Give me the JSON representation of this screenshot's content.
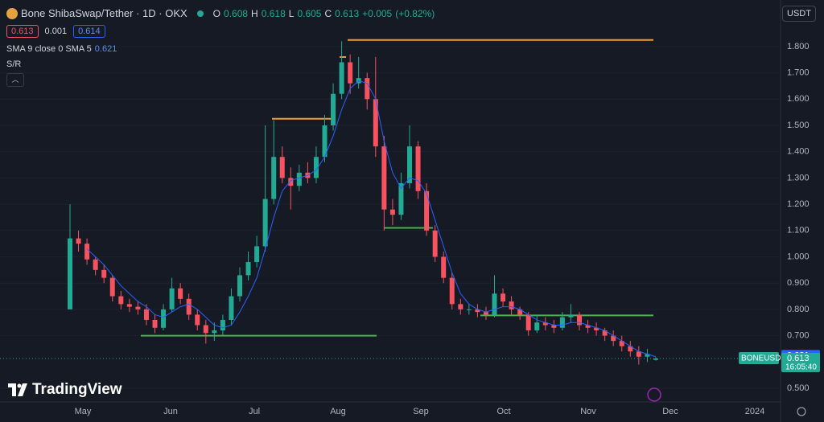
{
  "chart_data": {
    "type": "candlestick",
    "title": "Bone ShibaSwap/Tether · 1D · OKX",
    "legend": {
      "o": "O",
      "h": "H",
      "l": "L",
      "c": "C",
      "open": 0.608,
      "high": 0.618,
      "low": 0.605,
      "close": 0.613,
      "change": "+0.005",
      "change_pct": "(+0.82%)"
    },
    "quote": {
      "bid": 0.613,
      "spread": 0.001,
      "ask": 0.614
    },
    "indicator": {
      "label": "SMA 9 close 0 SMA 5",
      "value": 0.621,
      "color": "#2962ff"
    },
    "sr_label": "S/R",
    "currency": "USDT",
    "symbol": "BONEUSDT",
    "countdown": "16:05:40",
    "last": 0.613,
    "brand": "TradingView",
    "up_color": "#22ab94",
    "down_color": "#f7525f",
    "xticks": [
      "May",
      "Jun",
      "Jul",
      "Aug",
      "Sep",
      "Oct",
      "Nov",
      "Dec",
      "2024"
    ],
    "ylim": [
      0.448,
      1.977
    ],
    "yticks": [
      {
        "value": 1.8,
        "label": "1.800"
      },
      {
        "value": 1.7,
        "label": "1.700"
      },
      {
        "value": 1.6,
        "label": "1.600"
      },
      {
        "value": 1.5,
        "label": "1.500"
      },
      {
        "value": 1.4,
        "label": "1.400"
      },
      {
        "value": 1.3,
        "label": "1.300"
      },
      {
        "value": 1.2,
        "label": "1.200"
      },
      {
        "value": 1.1,
        "label": "1.100"
      },
      {
        "value": 1.0,
        "label": "1.000"
      },
      {
        "value": 0.9,
        "label": "0.900"
      },
      {
        "value": 0.8,
        "label": "0.800"
      },
      {
        "value": 0.7,
        "label": "0.700"
      },
      {
        "value": 0.5,
        "label": "0.500"
      }
    ],
    "grid": true,
    "open": [
      0.8,
      1.07,
      1.05,
      0.99,
      0.95,
      0.92,
      0.85,
      0.82,
      0.81,
      0.8,
      0.76,
      0.73,
      0.8,
      0.88,
      0.84,
      0.78,
      0.74,
      0.71,
      0.72,
      0.76,
      0.85,
      0.93,
      0.98,
      1.04,
      1.22,
      1.38,
      1.3,
      1.27,
      1.32,
      1.3,
      1.38,
      1.5,
      1.62,
      1.74,
      1.66,
      1.68,
      1.6,
      1.42,
      1.18,
      1.16,
      1.28,
      1.42,
      1.25,
      1.1,
      1.0,
      0.92,
      0.82,
      0.8,
      0.8,
      0.79,
      0.78,
      0.86,
      0.83,
      0.8,
      0.78,
      0.72,
      0.75,
      0.74,
      0.73,
      0.77,
      0.78,
      0.74,
      0.73,
      0.72,
      0.7,
      0.68,
      0.66,
      0.64,
      0.62,
      0.608
    ],
    "high": [
      1.2,
      1.1,
      1.07,
      1.0,
      0.97,
      0.93,
      0.87,
      0.84,
      0.83,
      0.82,
      0.78,
      0.82,
      0.92,
      0.9,
      0.86,
      0.8,
      0.76,
      0.75,
      0.78,
      0.88,
      0.96,
      1.02,
      1.08,
      1.5,
      1.52,
      1.42,
      1.34,
      1.35,
      1.36,
      1.42,
      1.54,
      1.66,
      1.82,
      1.77,
      1.76,
      1.7,
      1.76,
      1.46,
      1.22,
      1.32,
      1.5,
      1.44,
      1.28,
      1.12,
      1.02,
      0.94,
      0.84,
      0.82,
      0.82,
      0.81,
      0.93,
      0.88,
      0.85,
      0.81,
      0.79,
      0.78,
      0.77,
      0.76,
      0.79,
      0.82,
      0.79,
      0.76,
      0.75,
      0.73,
      0.72,
      0.7,
      0.68,
      0.66,
      0.65,
      0.618
    ],
    "low": [
      0.8,
      1.02,
      0.97,
      0.93,
      0.9,
      0.83,
      0.8,
      0.79,
      0.78,
      0.74,
      0.71,
      0.72,
      0.79,
      0.82,
      0.76,
      0.72,
      0.67,
      0.68,
      0.7,
      0.74,
      0.83,
      0.91,
      0.96,
      1.02,
      1.2,
      1.28,
      1.18,
      1.25,
      1.28,
      1.28,
      1.36,
      1.48,
      1.6,
      1.62,
      1.64,
      1.56,
      1.38,
      1.1,
      1.12,
      1.14,
      1.26,
      1.22,
      1.08,
      0.98,
      0.9,
      0.8,
      0.78,
      0.78,
      0.77,
      0.76,
      0.77,
      0.81,
      0.78,
      0.76,
      0.7,
      0.71,
      0.72,
      0.71,
      0.72,
      0.75,
      0.72,
      0.71,
      0.7,
      0.68,
      0.66,
      0.64,
      0.62,
      0.59,
      0.6,
      0.605
    ],
    "close": [
      1.07,
      1.05,
      0.99,
      0.95,
      0.92,
      0.85,
      0.82,
      0.81,
      0.8,
      0.76,
      0.73,
      0.8,
      0.88,
      0.84,
      0.78,
      0.74,
      0.71,
      0.72,
      0.76,
      0.85,
      0.93,
      0.98,
      1.04,
      1.22,
      1.38,
      1.3,
      1.27,
      1.32,
      1.3,
      1.38,
      1.5,
      1.62,
      1.74,
      1.66,
      1.68,
      1.6,
      1.42,
      1.18,
      1.16,
      1.28,
      1.42,
      1.25,
      1.1,
      1.0,
      0.92,
      0.82,
      0.8,
      0.8,
      0.79,
      0.78,
      0.86,
      0.83,
      0.8,
      0.78,
      0.72,
      0.75,
      0.74,
      0.73,
      0.77,
      0.78,
      0.74,
      0.73,
      0.72,
      0.7,
      0.68,
      0.66,
      0.64,
      0.62,
      0.63,
      0.613
    ],
    "sma": [
      null,
      null,
      1.03,
      1.0,
      0.97,
      0.93,
      0.89,
      0.86,
      0.83,
      0.81,
      0.78,
      0.77,
      0.79,
      0.81,
      0.82,
      0.8,
      0.77,
      0.74,
      0.73,
      0.74,
      0.79,
      0.85,
      0.92,
      1.03,
      1.15,
      1.25,
      1.29,
      1.3,
      1.31,
      1.33,
      1.38,
      1.46,
      1.56,
      1.64,
      1.67,
      1.66,
      1.6,
      1.44,
      1.32,
      1.26,
      1.3,
      1.29,
      1.24,
      1.14,
      1.04,
      0.94,
      0.86,
      0.82,
      0.8,
      0.79,
      0.8,
      0.81,
      0.81,
      0.8,
      0.78,
      0.76,
      0.75,
      0.74,
      0.74,
      0.75,
      0.75,
      0.74,
      0.73,
      0.72,
      0.7,
      0.68,
      0.66,
      0.64,
      0.63,
      0.62
    ],
    "levels": [
      {
        "value": 1.825,
        "color": "#f59d2a"
      },
      {
        "value": 1.76,
        "color": "#f59d2a"
      },
      {
        "value": 1.525,
        "color": "#f59d2a"
      },
      {
        "value": 1.11,
        "color": "#4caf50"
      },
      {
        "value": 0.7,
        "color": "#4caf50"
      },
      {
        "value": 0.777,
        "color": "#4caf50"
      }
    ]
  }
}
